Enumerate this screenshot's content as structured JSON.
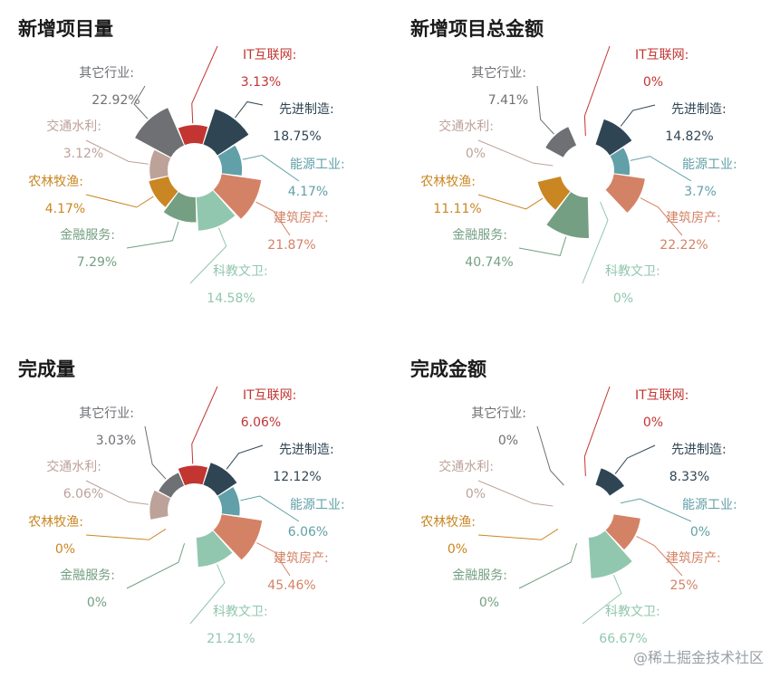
{
  "colors": {
    "IT互联网": "#c23531",
    "先进制造": "#2f4554",
    "能源工业": "#61a0a8",
    "建筑房产": "#d48265",
    "科教文卫": "#91c7ae",
    "金融服务": "#749f83",
    "农林牧渔": "#ca8622",
    "交通水利": "#bda29a",
    "其它行业": "#6e7074"
  },
  "chart_data": [
    {
      "type": "pie",
      "subtype": "nightingale-rose",
      "title": "新增项目量",
      "categories": [
        "IT互联网:",
        "先进制造:",
        "能源工业:",
        "建筑房产:",
        "科教文卫:",
        "金融服务:",
        "农林牧渔:",
        "交通水利:",
        "其它行业:"
      ],
      "keys": [
        "IT互联网",
        "先进制造",
        "能源工业",
        "建筑房产",
        "科教文卫",
        "金融服务",
        "农林牧渔",
        "交通水利",
        "其它行业"
      ],
      "values": [
        3.13,
        18.75,
        4.17,
        21.87,
        14.58,
        7.29,
        4.17,
        3.12,
        22.92
      ],
      "value_labels": [
        "3.13%",
        "18.75%",
        "4.17%",
        "21.87%",
        "14.58%",
        "7.29%",
        "4.17%",
        "3.12%",
        "22.92%"
      ]
    },
    {
      "type": "pie",
      "subtype": "nightingale-rose",
      "title": "新增项目总金额",
      "categories": [
        "IT互联网:",
        "先进制造:",
        "能源工业:",
        "建筑房产:",
        "科教文卫:",
        "金融服务:",
        "农林牧渔:",
        "交通水利:",
        "其它行业:"
      ],
      "keys": [
        "IT互联网",
        "先进制造",
        "能源工业",
        "建筑房产",
        "科教文卫",
        "金融服务",
        "农林牧渔",
        "交通水利",
        "其它行业"
      ],
      "values": [
        0,
        14.82,
        3.7,
        22.22,
        0,
        40.74,
        11.11,
        0,
        7.41
      ],
      "value_labels": [
        "0%",
        "14.82%",
        "3.7%",
        "22.22%",
        "0%",
        "40.74%",
        "11.11%",
        "0%",
        "7.41%"
      ]
    },
    {
      "type": "pie",
      "subtype": "nightingale-rose",
      "title": "完成量",
      "categories": [
        "IT互联网:",
        "先进制造:",
        "能源工业:",
        "建筑房产:",
        "科教文卫:",
        "金融服务:",
        "农林牧渔:",
        "交通水利:",
        "其它行业:"
      ],
      "keys": [
        "IT互联网",
        "先进制造",
        "能源工业",
        "建筑房产",
        "科教文卫",
        "金融服务",
        "农林牧渔",
        "交通水利",
        "其它行业"
      ],
      "values": [
        6.06,
        12.12,
        6.06,
        45.46,
        21.21,
        0,
        0,
        6.06,
        3.03
      ],
      "value_labels": [
        "6.06%",
        "12.12%",
        "6.06%",
        "45.46%",
        "21.21%",
        "0%",
        "0%",
        "6.06%",
        "3.03%"
      ]
    },
    {
      "type": "pie",
      "subtype": "nightingale-rose",
      "title": "完成金额",
      "categories": [
        "IT互联网:",
        "先进制造:",
        "能源工业:",
        "建筑房产:",
        "科教文卫:",
        "金融服务:",
        "农林牧渔:",
        "交通水利:",
        "其它行业:"
      ],
      "keys": [
        "IT互联网",
        "先进制造",
        "能源工业",
        "建筑房产",
        "科教文卫",
        "金融服务",
        "农林牧渔",
        "交通水利",
        "其它行业"
      ],
      "values": [
        0,
        8.33,
        0,
        25,
        66.67,
        0,
        0,
        0,
        0
      ],
      "value_labels": [
        "0%",
        "8.33%",
        "0%",
        "25%",
        "66.67%",
        "0%",
        "0%",
        "0%",
        "0%"
      ]
    }
  ],
  "watermark": "@稀土掘金技术社区"
}
